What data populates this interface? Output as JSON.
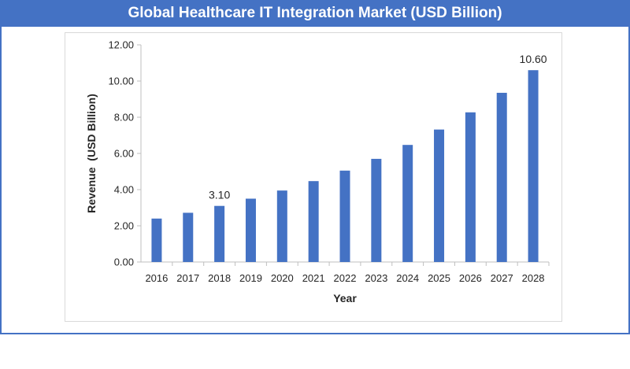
{
  "chart_data": {
    "type": "bar",
    "title": "Global Healthcare IT Integration Market (USD Billion)",
    "xlabel": "Year",
    "ylabel": "Revenue  (USD Billion)",
    "categories": [
      "2016",
      "2017",
      "2018",
      "2019",
      "2020",
      "2021",
      "2022",
      "2023",
      "2024",
      "2025",
      "2026",
      "2027",
      "2028"
    ],
    "values": [
      2.4,
      2.72,
      3.1,
      3.5,
      3.95,
      4.47,
      5.05,
      5.7,
      6.47,
      7.32,
      8.27,
      9.35,
      10.6
    ],
    "ylim": [
      0,
      12
    ],
    "yticks": [
      "0.00",
      "2.00",
      "4.00",
      "6.00",
      "8.00",
      "10.00",
      "12.00"
    ],
    "data_labels": [
      {
        "index": 2,
        "text": "3.10"
      },
      {
        "index": 12,
        "text": "10.60"
      }
    ],
    "grid": false,
    "legend": "none",
    "bar_color": "#4472c4"
  }
}
